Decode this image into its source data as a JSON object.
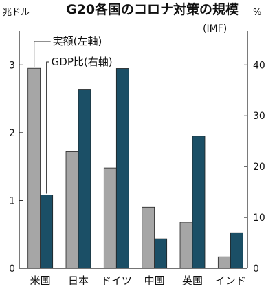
{
  "chart_data": {
    "type": "bar",
    "title": "G20各国のコロナ対策の規模",
    "subtitle": "(IMF)",
    "left_unit": "兆ドル",
    "right_unit": "%",
    "categories": [
      "米国",
      "日本",
      "ドイツ",
      "中国",
      "英国",
      "インド"
    ],
    "series": [
      {
        "name": "実額(左軸)",
        "axis": "left",
        "color": "#a6a6a6",
        "values": [
          2.95,
          1.72,
          1.48,
          0.9,
          0.68,
          0.17
        ]
      },
      {
        "name": "GDP比(右軸)",
        "axis": "right",
        "color": "#1b4f66",
        "values": [
          14.4,
          35.1,
          39.3,
          5.8,
          26.0,
          7.0
        ]
      }
    ],
    "left_ylim": [
      0,
      3.5
    ],
    "right_ylim": [
      0,
      46.67
    ],
    "left_ticks": [
      "0",
      "1",
      "2",
      "3"
    ],
    "right_ticks": [
      "0",
      "10",
      "20",
      "30",
      "40"
    ],
    "grid": false
  }
}
